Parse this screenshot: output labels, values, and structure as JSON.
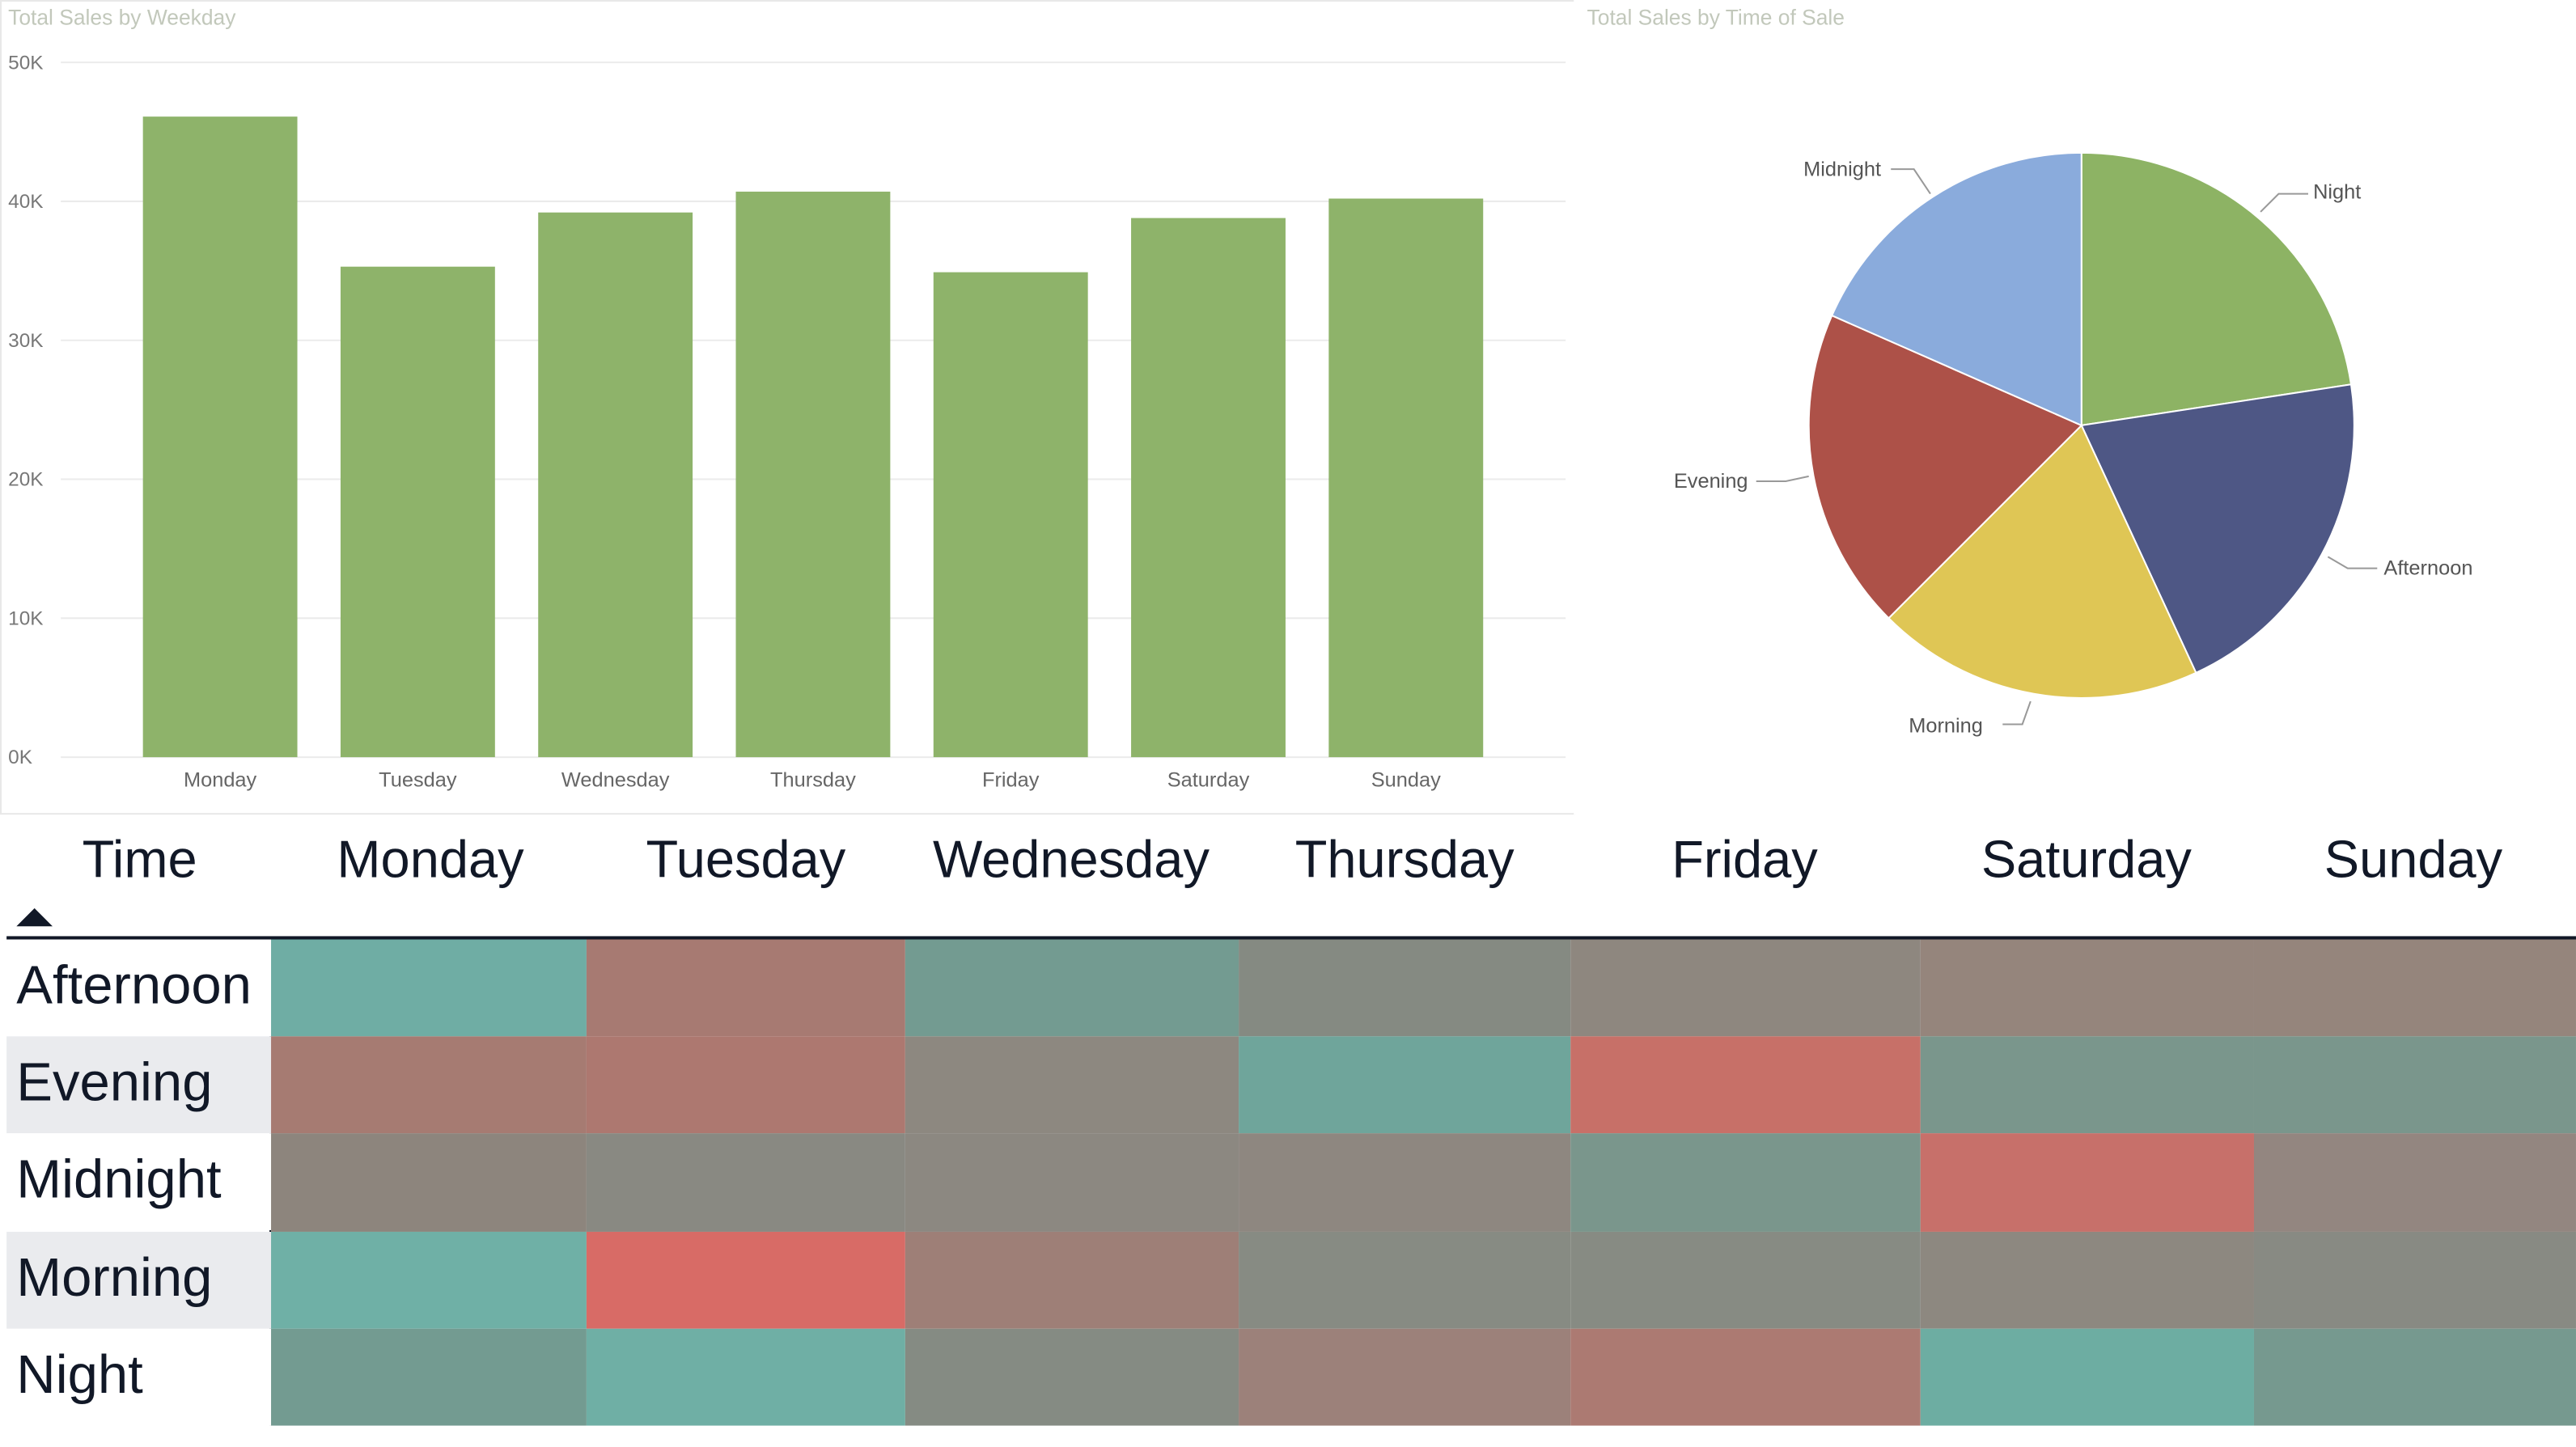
{
  "bar_panel": {
    "title": "Total Sales by Weekday"
  },
  "pie_panel": {
    "title": "Total Sales by Time of Sale"
  },
  "chart_data": [
    {
      "type": "bar",
      "title": "Total Sales by Weekday",
      "categories": [
        "Monday",
        "Tuesday",
        "Wednesday",
        "Thursday",
        "Friday",
        "Saturday",
        "Sunday"
      ],
      "values": [
        46100,
        35300,
        39200,
        40700,
        34900,
        38800,
        40200
      ],
      "yticks": [
        "0K",
        "10K",
        "20K",
        "30K",
        "40K",
        "50K"
      ],
      "ylim": [
        0,
        50000
      ],
      "grid": true,
      "color": "#8eb36a"
    },
    {
      "type": "pie",
      "title": "Total Sales by Time of Sale",
      "categories": [
        "Night",
        "Afternoon",
        "Morning",
        "Evening",
        "Midnight"
      ],
      "values": [
        22.6,
        20.5,
        19.4,
        19.1,
        18.4
      ],
      "unit": "percent of total",
      "colors": [
        "#8db364",
        "#4e5785",
        "#dfc655",
        "#ad5148",
        "#8aabdc"
      ]
    },
    {
      "type": "heatmap",
      "corner_label": "Time",
      "sort_indicator": "ascending",
      "columns": [
        "Monday",
        "Tuesday",
        "Wednesday",
        "Thursday",
        "Friday",
        "Saturday",
        "Sunday"
      ],
      "rows": [
        "Afternoon",
        "Evening",
        "Midnight",
        "Morning",
        "Night"
      ],
      "cell_colors": [
        [
          "#6fada4",
          "#a77a72",
          "#739b91",
          "#858a82",
          "#8e877f",
          "#95857c",
          "#95857c"
        ],
        [
          "#a67b72",
          "#ad7870",
          "#8d8880",
          "#6fa59b",
          "#c77068",
          "#7a968c",
          "#7a968c"
        ],
        [
          "#8d857d",
          "#898982",
          "#8c8881",
          "#8e8780",
          "#7a968c",
          "#c7706a",
          "#938680"
        ],
        [
          "#6fb0a6",
          "#d86b66",
          "#9e7f77",
          "#878b83",
          "#878b83",
          "#8d8880",
          "#888a83"
        ],
        [
          "#739b91",
          "#6fafa5",
          "#858b83",
          "#9c817a",
          "#ac7a72",
          "#6dada2",
          "#76998f"
        ]
      ]
    }
  ]
}
